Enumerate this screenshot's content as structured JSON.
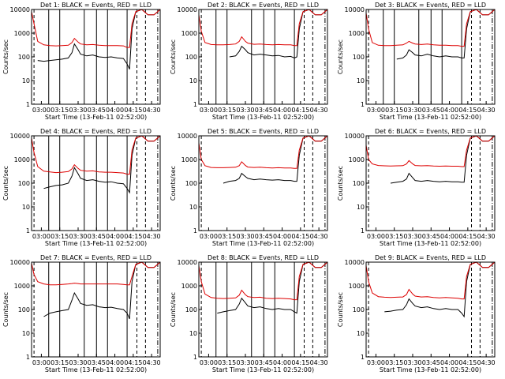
{
  "colors": {
    "events": "#000000",
    "lld": "#dd0000",
    "axis": "#000000"
  },
  "xlabel": "Start Time (13-Feb-11 02:52:00)",
  "ylabel": "Counts/sec",
  "xtick_labels": [
    "03:00",
    "03:15",
    "03:30",
    "03:45",
    "04:00",
    "04:15",
    "04:30"
  ],
  "ytick_labels": [
    "1",
    "10",
    "100",
    "1000",
    "10000"
  ],
  "chart_data": [
    {
      "type": "line",
      "title": "Det 1: BLACK = Events, RED = LLD",
      "xlim_minutes": [
        0,
        105
      ],
      "ylim": [
        1,
        10000
      ],
      "yscale": "log",
      "x_minutes": [
        0,
        2,
        5,
        10,
        15,
        20,
        25,
        30,
        33,
        35,
        38,
        40,
        45,
        50,
        55,
        60,
        65,
        70,
        75,
        78,
        80,
        82,
        85,
        90,
        95,
        100,
        105
      ],
      "series": [
        {
          "name": "Events",
          "values": [
            null,
            null,
            70,
            65,
            70,
            75,
            80,
            90,
            150,
            350,
            200,
            130,
            110,
            120,
            100,
            95,
            100,
            90,
            85,
            50,
            30,
            1500,
            8000,
            10000,
            6000,
            6000,
            10000
          ]
        },
        {
          "name": "LLD",
          "values": [
            8000,
            2500,
            450,
            320,
            300,
            290,
            300,
            310,
            400,
            600,
            420,
            350,
            320,
            330,
            310,
            300,
            300,
            300,
            290,
            250,
            250,
            2500,
            8000,
            10000,
            6000,
            6000,
            10000
          ]
        }
      ],
      "vlines_solid_minutes": [
        14,
        23,
        43,
        53,
        62,
        78
      ],
      "vlines_dashed_minutes": [
        2,
        86,
        93
      ],
      "vlines_dashdot_minutes": [
        103
      ]
    },
    {
      "type": "line",
      "title": "Det 2: BLACK = Events, RED = LLD",
      "xlim_minutes": [
        0,
        105
      ],
      "ylim": [
        1,
        10000
      ],
      "yscale": "log",
      "x_minutes": [
        0,
        2,
        5,
        10,
        15,
        20,
        25,
        30,
        33,
        35,
        38,
        40,
        45,
        50,
        55,
        60,
        65,
        70,
        75,
        78,
        80,
        82,
        85,
        90,
        95,
        100,
        105
      ],
      "series": [
        {
          "name": "Events",
          "values": [
            null,
            null,
            null,
            null,
            null,
            null,
            100,
            110,
            170,
            280,
            200,
            150,
            120,
            130,
            120,
            110,
            115,
            100,
            105,
            90,
            100,
            1500,
            8000,
            10000,
            6000,
            6000,
            10000
          ]
        },
        {
          "name": "LLD",
          "values": [
            6000,
            1200,
            400,
            330,
            320,
            320,
            330,
            350,
            450,
            700,
            450,
            380,
            340,
            350,
            330,
            320,
            330,
            320,
            320,
            300,
            300,
            2500,
            8000,
            10000,
            6000,
            6000,
            10000
          ]
        }
      ],
      "vlines_solid_minutes": [
        14,
        23,
        43,
        53,
        62,
        78
      ],
      "vlines_dashed_minutes": [
        2,
        86,
        93
      ],
      "vlines_dashdot_minutes": [
        103
      ]
    },
    {
      "type": "line",
      "title": "Det 3: BLACK = Events, RED = LLD",
      "xlim_minutes": [
        0,
        105
      ],
      "ylim": [
        1,
        10000
      ],
      "yscale": "log",
      "x_minutes": [
        0,
        2,
        5,
        10,
        15,
        20,
        25,
        30,
        33,
        35,
        38,
        40,
        45,
        50,
        55,
        60,
        65,
        70,
        75,
        78,
        80,
        82,
        85,
        90,
        95,
        100,
        105
      ],
      "series": [
        {
          "name": "Events",
          "values": [
            null,
            null,
            null,
            null,
            null,
            null,
            80,
            90,
            120,
            200,
            150,
            120,
            110,
            130,
            110,
            100,
            110,
            100,
            100,
            90,
            90,
            1500,
            8000,
            10000,
            6000,
            6000,
            10000
          ]
        },
        {
          "name": "LLD",
          "values": [
            7000,
            1500,
            400,
            310,
            300,
            300,
            310,
            320,
            380,
            450,
            380,
            350,
            330,
            350,
            320,
            310,
            310,
            300,
            300,
            280,
            280,
            2500,
            8000,
            10000,
            6000,
            6000,
            10000
          ]
        }
      ],
      "vlines_solid_minutes": [
        14,
        23,
        43,
        53,
        62,
        78
      ],
      "vlines_dashed_minutes": [
        2,
        86,
        93
      ],
      "vlines_dashdot_minutes": [
        103
      ]
    },
    {
      "type": "line",
      "title": "Det 4: BLACK = Events, RED = LLD",
      "xlim_minutes": [
        0,
        105
      ],
      "ylim": [
        1,
        10000
      ],
      "yscale": "log",
      "x_minutes": [
        0,
        2,
        5,
        10,
        15,
        20,
        25,
        30,
        33,
        35,
        38,
        40,
        45,
        50,
        55,
        60,
        65,
        70,
        75,
        78,
        80,
        82,
        85,
        90,
        95,
        100,
        105
      ],
      "series": [
        {
          "name": "Events",
          "values": [
            null,
            null,
            null,
            60,
            70,
            80,
            85,
            100,
            200,
            450,
            250,
            160,
            130,
            140,
            120,
            110,
            115,
            100,
            95,
            60,
            40,
            1500,
            8000,
            10000,
            6000,
            6000,
            10000
          ]
        },
        {
          "name": "LLD",
          "values": [
            8000,
            2000,
            500,
            320,
            300,
            280,
            290,
            310,
            400,
            600,
            420,
            350,
            320,
            330,
            300,
            290,
            290,
            280,
            270,
            240,
            240,
            2500,
            8000,
            10000,
            6000,
            6000,
            10000
          ]
        }
      ],
      "vlines_solid_minutes": [
        14,
        23,
        43,
        53,
        62,
        78
      ],
      "vlines_dashed_minutes": [
        2,
        86,
        93
      ],
      "vlines_dashdot_minutes": [
        103
      ]
    },
    {
      "type": "line",
      "title": "Det 5: BLACK = Events, RED = LLD",
      "xlim_minutes": [
        0,
        105
      ],
      "ylim": [
        1,
        10000
      ],
      "yscale": "log",
      "x_minutes": [
        0,
        2,
        5,
        10,
        15,
        20,
        25,
        30,
        33,
        35,
        38,
        40,
        45,
        50,
        55,
        60,
        65,
        70,
        75,
        78,
        80,
        82,
        85,
        90,
        95,
        100,
        105
      ],
      "series": [
        {
          "name": "Events",
          "values": [
            null,
            null,
            null,
            null,
            null,
            100,
            120,
            130,
            160,
            260,
            190,
            160,
            140,
            150,
            140,
            135,
            140,
            130,
            130,
            120,
            120,
            1500,
            8000,
            10000,
            6000,
            6000,
            10000
          ]
        },
        {
          "name": "LLD",
          "values": [
            5000,
            1000,
            550,
            460,
            450,
            450,
            460,
            470,
            550,
            800,
            560,
            480,
            460,
            470,
            450,
            440,
            450,
            440,
            440,
            420,
            420,
            2500,
            8000,
            10000,
            6000,
            6000,
            10000
          ]
        }
      ],
      "vlines_solid_minutes": [],
      "vlines_dashed_minutes": [
        2,
        86,
        93
      ],
      "vlines_dashdot_minutes": [
        103
      ]
    },
    {
      "type": "line",
      "title": "Det 6: BLACK = Events, RED = LLD",
      "xlim_minutes": [
        0,
        105
      ],
      "ylim": [
        1,
        10000
      ],
      "yscale": "log",
      "x_minutes": [
        0,
        2,
        5,
        10,
        15,
        20,
        25,
        30,
        33,
        35,
        38,
        40,
        45,
        50,
        55,
        60,
        65,
        70,
        75,
        78,
        80,
        82,
        85,
        90,
        95,
        100,
        105
      ],
      "series": [
        {
          "name": "Events",
          "values": [
            null,
            null,
            null,
            null,
            null,
            100,
            110,
            120,
            150,
            260,
            170,
            130,
            120,
            130,
            120,
            115,
            120,
            115,
            115,
            110,
            110,
            1500,
            8000,
            10000,
            6000,
            6000,
            10000
          ]
        },
        {
          "name": "LLD",
          "values": [
            4000,
            1000,
            650,
            560,
            540,
            530,
            540,
            550,
            650,
            900,
            650,
            560,
            540,
            550,
            530,
            520,
            530,
            520,
            520,
            500,
            500,
            2500,
            8000,
            10000,
            6000,
            6000,
            10000
          ]
        }
      ],
      "vlines_solid_minutes": [],
      "vlines_dashed_minutes": [
        2,
        86,
        93
      ],
      "vlines_dashdot_minutes": [
        103
      ]
    },
    {
      "type": "line",
      "title": "Det 7: BLACK = Events, RED = LLD",
      "xlim_minutes": [
        0,
        105
      ],
      "ylim": [
        1,
        10000
      ],
      "yscale": "log",
      "x_minutes": [
        0,
        2,
        5,
        10,
        15,
        20,
        25,
        30,
        33,
        35,
        38,
        40,
        45,
        50,
        55,
        60,
        65,
        70,
        75,
        78,
        80,
        82,
        85,
        90,
        95,
        100,
        105
      ],
      "series": [
        {
          "name": "Events",
          "values": [
            null,
            null,
            null,
            50,
            70,
            80,
            90,
            100,
            250,
            500,
            280,
            180,
            150,
            160,
            130,
            120,
            125,
            110,
            100,
            70,
            40,
            1500,
            8000,
            10000,
            6000,
            6000,
            10000
          ]
        },
        {
          "name": "LLD",
          "values": [
            9000,
            3000,
            1500,
            1200,
            1100,
            1100,
            1150,
            1200,
            1250,
            1300,
            1250,
            1200,
            1200,
            1200,
            1200,
            1200,
            1200,
            1200,
            1150,
            1100,
            1100,
            2500,
            8000,
            10000,
            6000,
            6000,
            10000
          ]
        }
      ],
      "vlines_solid_minutes": [
        14,
        23,
        43,
        53,
        62,
        78
      ],
      "vlines_dashed_minutes": [
        2,
        86,
        93
      ],
      "vlines_dashdot_minutes": [
        103
      ]
    },
    {
      "type": "line",
      "title": "Det 8: BLACK = Events, RED = LLD",
      "xlim_minutes": [
        0,
        105
      ],
      "ylim": [
        1,
        10000
      ],
      "yscale": "log",
      "x_minutes": [
        0,
        2,
        5,
        10,
        15,
        20,
        25,
        30,
        33,
        35,
        38,
        40,
        45,
        50,
        55,
        60,
        65,
        70,
        75,
        78,
        80,
        82,
        85,
        90,
        95,
        100,
        105
      ],
      "series": [
        {
          "name": "Events",
          "values": [
            null,
            null,
            null,
            null,
            70,
            80,
            90,
            100,
            170,
            300,
            190,
            140,
            120,
            130,
            110,
            100,
            110,
            100,
            100,
            80,
            70,
            1500,
            8000,
            10000,
            6000,
            6000,
            10000
          ]
        },
        {
          "name": "LLD",
          "values": [
            7000,
            1500,
            450,
            320,
            300,
            290,
            300,
            310,
            400,
            650,
            420,
            350,
            320,
            330,
            300,
            290,
            300,
            290,
            280,
            260,
            260,
            2500,
            8000,
            10000,
            6000,
            6000,
            10000
          ]
        }
      ],
      "vlines_solid_minutes": [
        14,
        23,
        43,
        53,
        62,
        78
      ],
      "vlines_dashed_minutes": [
        2,
        86,
        93
      ],
      "vlines_dashdot_minutes": [
        103
      ]
    },
    {
      "type": "line",
      "title": "Det 9: BLACK = Events, RED = LLD",
      "xlim_minutes": [
        0,
        105
      ],
      "ylim": [
        1,
        10000
      ],
      "yscale": "log",
      "x_minutes": [
        0,
        2,
        5,
        10,
        15,
        20,
        25,
        30,
        33,
        35,
        38,
        40,
        45,
        50,
        55,
        60,
        65,
        70,
        75,
        78,
        80,
        82,
        85,
        90,
        95,
        100,
        105
      ],
      "series": [
        {
          "name": "Events",
          "values": [
            null,
            null,
            null,
            null,
            80,
            85,
            95,
            100,
            160,
            280,
            180,
            140,
            120,
            130,
            110,
            100,
            110,
            100,
            100,
            70,
            50,
            1500,
            8000,
            10000,
            6000,
            6000,
            10000
          ]
        },
        {
          "name": "LLD",
          "values": [
            7000,
            1500,
            500,
            350,
            330,
            320,
            330,
            340,
            430,
            700,
            450,
            370,
            340,
            350,
            320,
            310,
            320,
            310,
            300,
            280,
            280,
            2500,
            8000,
            10000,
            6000,
            6000,
            10000
          ]
        }
      ],
      "vlines_solid_minutes": [],
      "vlines_dashed_minutes": [
        2,
        86,
        93
      ],
      "vlines_dashdot_minutes": [
        103
      ]
    }
  ]
}
